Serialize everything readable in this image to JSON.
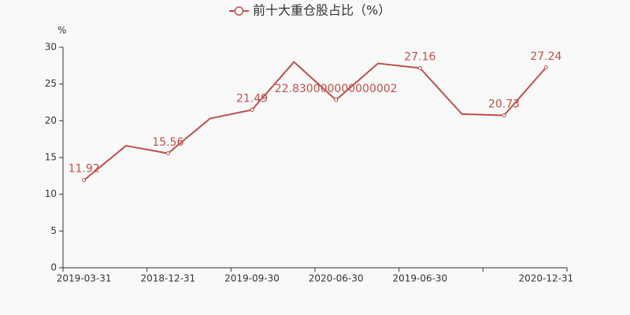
{
  "chart_data": {
    "type": "line",
    "y_axis_label": "%",
    "categories": [
      "2019-03-31",
      null,
      "2018-12-31",
      null,
      "2019-09-30",
      null,
      "2020-06-30",
      null,
      "2019-06-30",
      null,
      null,
      "2020-12-31"
    ],
    "series": [
      {
        "name": "前十大重仓股占比（%）",
        "color": "#c0504d",
        "values": [
          11.92,
          16.6,
          15.56,
          20.3,
          21.49,
          28.0,
          22.830000000000002,
          27.8,
          27.16,
          20.9,
          20.73,
          27.24
        ],
        "value_labels": [
          "11.92",
          null,
          "15.56",
          null,
          "21.49",
          null,
          "22.830000000000002",
          null,
          "27.16",
          null,
          "20.73",
          "27.24"
        ]
      }
    ],
    "ylim": [
      0,
      30
    ],
    "yticks": [
      0,
      5,
      10,
      15,
      20,
      25,
      30
    ],
    "grid": false
  }
}
